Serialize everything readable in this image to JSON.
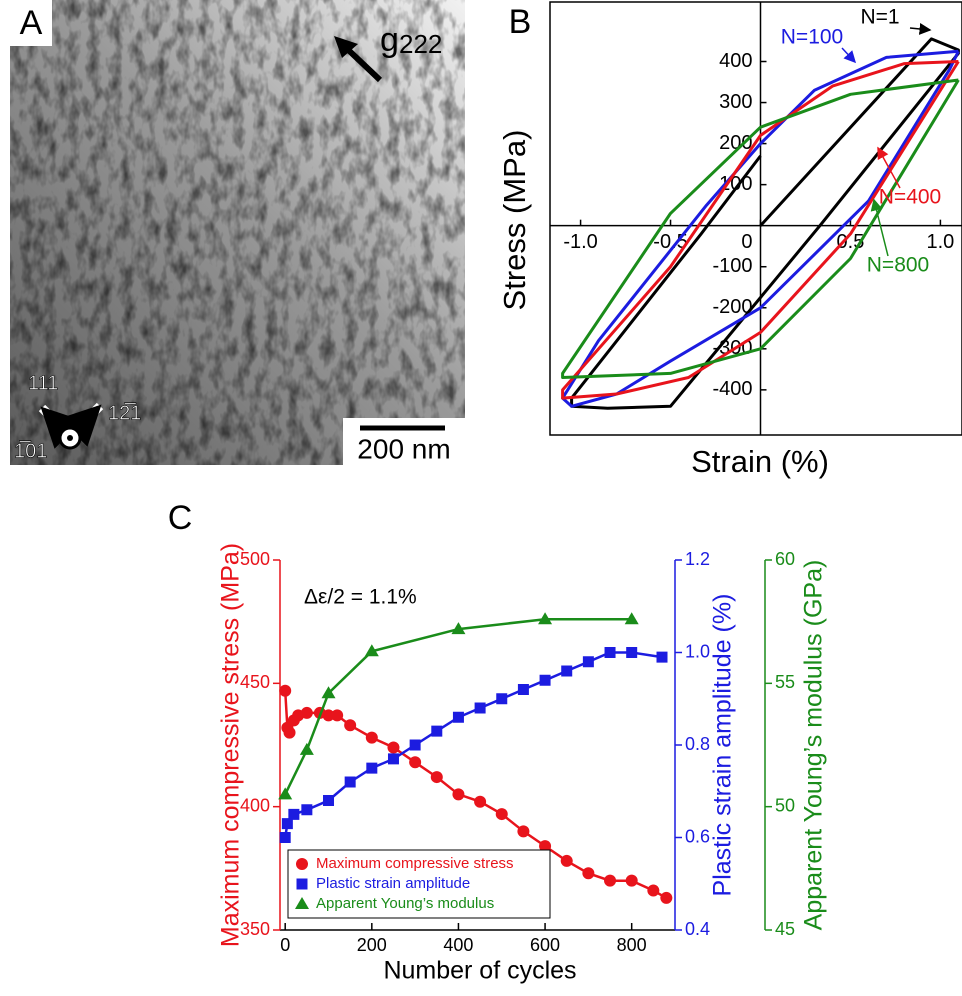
{
  "panel_a": {
    "label": "A",
    "g_vector": "g",
    "g_index": "222",
    "scale_bar": "200 nm",
    "directions": [
      "111",
      "12̅1",
      "1̅01"
    ]
  },
  "chart_data": [
    {
      "type": "loops",
      "label": "B",
      "x_label": "Strain (%)",
      "y_label": "Stress (MPa)",
      "xlim": [
        -1.17,
        1.12
      ],
      "ylim": [
        -510,
        545
      ],
      "xticks": [
        {
          "value": -1,
          "label": "-1.0"
        },
        {
          "value": -0.5,
          "label": "-0.5"
        },
        0,
        {
          "value": 0.5,
          "label": "0.5"
        },
        {
          "value": 1,
          "label": "1.0"
        }
      ],
      "yticks": [
        -400,
        -300,
        -200,
        -100,
        100,
        200,
        300,
        400
      ],
      "series": [
        {
          "name": "N=1",
          "color": "#000000",
          "x": [
            0,
            0.95,
            1.1,
            1.1,
            0.33,
            -0.5,
            -0.85,
            -1.05,
            -1.05,
            -0.33,
            0.0
          ],
          "values": [
            0,
            455,
            428,
            420,
            0,
            -440,
            -445,
            -440,
            -420,
            -20,
            170
          ]
        },
        {
          "name": "N=100",
          "color": "#1c1ce0",
          "x": [
            1.1,
            1.05,
            0.6,
            0.0,
            -0.5,
            -0.8,
            -1.05,
            -1.1,
            -0.9,
            -0.3,
            0.0,
            0.3,
            0.7,
            1.1
          ],
          "values": [
            425,
            380,
            60,
            -200,
            -330,
            -410,
            -440,
            -420,
            -280,
            50,
            200,
            330,
            410,
            425
          ]
        },
        {
          "name": "N=400",
          "color": "#e8141c",
          "x": [
            1.1,
            0.5,
            0.0,
            -0.4,
            -0.8,
            -1.1,
            -1.1,
            -0.5,
            0.0,
            0.4,
            0.8,
            1.1
          ],
          "values": [
            400,
            -20,
            -260,
            -370,
            -410,
            -420,
            -400,
            -100,
            220,
            340,
            395,
            400
          ]
        },
        {
          "name": "N=800",
          "color": "#1a8c1a",
          "x": [
            1.1,
            0.5,
            0.0,
            -0.5,
            -1.1,
            -1.1,
            -0.5,
            0.0,
            0.5,
            1.1
          ],
          "values": [
            355,
            -80,
            -300,
            -360,
            -370,
            -360,
            30,
            240,
            320,
            355
          ]
        }
      ]
    },
    {
      "type": "multi_axis",
      "label": "C",
      "x_label": "Number of cycles",
      "y_label": "Maximum compressive stress (MPa)",
      "y2_label": "Plastic strain amplitude (%)",
      "y3_label": "Apparent Young’s modulus (GPa)",
      "annotation": "Δε/2 = 1.1%",
      "legend": "lower left",
      "xlim": [
        -12,
        900
      ],
      "xticks": [
        0,
        200,
        400,
        600,
        800
      ],
      "ylim": [
        350,
        500
      ],
      "yticks": [
        350,
        400,
        450,
        500
      ],
      "y2lim": [
        0.4,
        1.2
      ],
      "y2ticks": [
        0.4,
        0.6,
        0.8,
        {
          "value": 1,
          "label": "1.0"
        },
        1.2
      ],
      "y3lim": [
        45,
        60
      ],
      "y3ticks": [
        45,
        50,
        55,
        60
      ],
      "series": [
        {
          "name": "Maximum compressive stress",
          "color": "#e8141c",
          "marker": "circle",
          "axis": "y",
          "x": [
            0,
            5,
            10,
            20,
            30,
            50,
            80,
            100,
            120,
            150,
            200,
            250,
            300,
            350,
            400,
            450,
            500,
            550,
            600,
            650,
            700,
            750,
            800,
            850,
            880
          ],
          "values": [
            447,
            432,
            430,
            435,
            437,
            438,
            438,
            437,
            437,
            433,
            428,
            424,
            418,
            412,
            405,
            402,
            397,
            390,
            384,
            378,
            373,
            370,
            370,
            366,
            363
          ]
        },
        {
          "name": "Plastic strain amplitude",
          "color": "#1c1ce0",
          "marker": "square",
          "axis": "y2",
          "x": [
            0,
            5,
            20,
            50,
            100,
            150,
            200,
            250,
            300,
            350,
            400,
            450,
            500,
            550,
            600,
            650,
            700,
            750,
            800,
            870
          ],
          "values": [
            0.6,
            0.63,
            0.65,
            0.66,
            0.68,
            0.72,
            0.75,
            0.77,
            0.8,
            0.83,
            0.86,
            0.88,
            0.9,
            0.92,
            0.94,
            0.96,
            0.98,
            1.0,
            1.0,
            0.99
          ]
        },
        {
          "name": "Apparent Young’s modulus",
          "color": "#1a8c1a",
          "marker": "triangle",
          "axis": "y3",
          "x": [
            0,
            50,
            100,
            200,
            400,
            600,
            800
          ],
          "values": [
            50.5,
            52.3,
            54.6,
            56.3,
            57.2,
            57.6,
            57.6
          ]
        }
      ]
    }
  ]
}
